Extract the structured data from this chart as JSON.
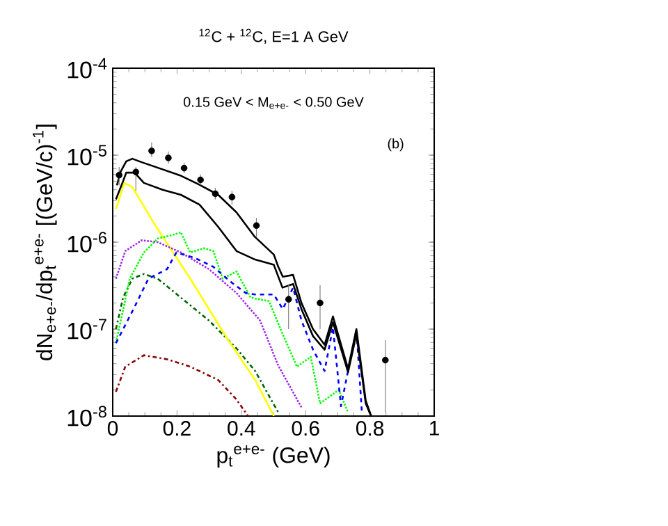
{
  "chart_data": {
    "type": "line",
    "title": "$^{12}$C + $^{12}$C, E=1 A GeV",
    "xlabel": "p$_{t}$$^{e+e-}$ (GeV)",
    "ylabel": "dN$_{e+e-}$/dp$_{t}$$^{e+e-}$ [(GeV/c)$^{-1}$]",
    "annotations": [
      "0.15 GeV <  M$_{e+e-}$ < 0.50 GeV",
      "(b)"
    ],
    "log": "y",
    "grid": false,
    "xlim": [
      0,
      1
    ],
    "ylim": [
      1e-08,
      0.0001
    ],
    "xticks": [
      0,
      0.2,
      0.4,
      0.6,
      0.8,
      1
    ],
    "yticks": [
      {
        "value": 1e-08,
        "label": "10$^{-8}$"
      },
      {
        "value": 1e-07,
        "label": "10$^{-7}$"
      },
      {
        "value": 1e-06,
        "label": "10$^{-6}$"
      },
      {
        "value": 1e-05,
        "label": "10$^{-5}$"
      },
      {
        "value": 0.0001,
        "label": "10$^{-4}$"
      }
    ],
    "series": [
      {
        "type": "line",
        "color": "#8b0000",
        "line_style": "dashdot",
        "marker": "none",
        "x": [
          0.01,
          0.039,
          0.097,
          0.169,
          0.241,
          0.328,
          0.385,
          0.421
        ],
        "values": [
          1.9e-08,
          3.7e-08,
          5e-08,
          4.5e-08,
          3.7e-08,
          2.6e-08,
          1.55e-08,
          1e-08
        ]
      },
      {
        "type": "line",
        "color": "#006400",
        "line_style": "dashdot",
        "marker": "none",
        "x": [
          0.01,
          0.032,
          0.061,
          0.097,
          0.14,
          0.212,
          0.299,
          0.385,
          0.443,
          0.515
        ],
        "values": [
          1e-07,
          2.3e-07,
          3.8e-07,
          4.3e-07,
          3.8e-07,
          2.3e-07,
          1.26e-07,
          6e-08,
          3.3e-08,
          1.1e-08
        ]
      },
      {
        "type": "line",
        "color": "#ffff00",
        "line_style": "solid",
        "marker": "none",
        "x": [
          0.01,
          0.036,
          0.061,
          0.126,
          0.241,
          0.356,
          0.443,
          0.501
        ],
        "values": [
          2.4e-06,
          4.8e-06,
          4.3e-06,
          1.7e-06,
          3.8e-07,
          7.8e-08,
          2.6e-08,
          1e-08
        ]
      },
      {
        "type": "line",
        "color": "#a020f0",
        "line_style": "dotted",
        "marker": "none",
        "x": [
          0.01,
          0.039,
          0.09,
          0.14,
          0.212,
          0.299,
          0.385,
          0.458,
          0.515,
          0.587
        ],
        "values": [
          3.8e-07,
          7.9e-07,
          1.05e-06,
          1e-06,
          7.6e-07,
          4.9e-07,
          2.6e-07,
          1.26e-07,
          3.8e-08,
          1.26e-08
        ]
      },
      {
        "type": "line",
        "color": "#00ff00",
        "line_style": "dotted",
        "marker": "none",
        "x": [
          0.01,
          0.053,
          0.097,
          0.14,
          0.183,
          0.212,
          0.241,
          0.284,
          0.313,
          0.342,
          0.385,
          0.429,
          0.486,
          0.529,
          0.573,
          0.616,
          0.645,
          0.703,
          0.732
        ],
        "values": [
          6.9e-08,
          3.8e-07,
          7.6e-07,
          1.1e-06,
          1.2e-06,
          1.3e-06,
          7.6e-07,
          8.5e-07,
          7.9e-07,
          3.8e-07,
          4.6e-07,
          2.3e-07,
          2.1e-07,
          8.7e-08,
          3.7e-08,
          4.8e-08,
          1.4e-08,
          2e-08,
          1.1e-08
        ]
      },
      {
        "type": "line",
        "color": "#0000ff",
        "line_style": "dashed",
        "marker": "none",
        "x": [
          0.01,
          0.068,
          0.111,
          0.169,
          0.198,
          0.255,
          0.313,
          0.371,
          0.414,
          0.443,
          0.501,
          0.529,
          0.561,
          0.587,
          0.623,
          0.659,
          0.685,
          0.71,
          0.758,
          0.775
        ],
        "values": [
          6.9e-08,
          1.8e-07,
          3.8e-07,
          4.9e-07,
          7.6e-07,
          6.6e-07,
          5.2e-07,
          3.4e-07,
          2.6e-07,
          2.5e-07,
          2.5e-07,
          1.7e-07,
          3e-07,
          1.26e-07,
          5.8e-08,
          3.3e-08,
          1.05e-07,
          1.3e-08,
          1e-07,
          1.1e-08
        ]
      },
      {
        "type": "line",
        "color": "#000000",
        "line_style": "solid",
        "marker": "none",
        "x": [
          0.01,
          0.032,
          0.042,
          0.068,
          0.097,
          0.155,
          0.212,
          0.27,
          0.328,
          0.385,
          0.443,
          0.501,
          0.528,
          0.561,
          0.587,
          0.623,
          0.659,
          0.685,
          0.732,
          0.758,
          0.787,
          0.801
        ],
        "values": [
          3.1e-06,
          5e-06,
          6.3e-06,
          6.3e-06,
          4.8e-06,
          4e-06,
          3.5e-06,
          2.7e-06,
          1.5e-06,
          7.9e-07,
          6.3e-07,
          5.5e-07,
          3e-07,
          3.3e-07,
          1.7e-07,
          8.3e-08,
          5.8e-08,
          1.2e-07,
          3.2e-08,
          8.7e-08,
          1.4e-08,
          1.05e-08
        ]
      },
      {
        "type": "line",
        "color": "#000000",
        "line_style": "solid",
        "marker": "none",
        "x": [
          0.013,
          0.025,
          0.042,
          0.061,
          0.09,
          0.212,
          0.268,
          0.328,
          0.385,
          0.442,
          0.501,
          0.515,
          0.529,
          0.561,
          0.587,
          0.623,
          0.659,
          0.685,
          0.732,
          0.758,
          0.787,
          0.804
        ],
        "values": [
          4.5e-06,
          6.5e-06,
          8.5e-06,
          9.1e-06,
          8.3e-06,
          5.8e-06,
          4.6e-06,
          3.5e-06,
          2.2e-06,
          1.15e-06,
          7.2e-07,
          5.2e-07,
          4e-07,
          4.2e-07,
          2e-07,
          1e-07,
          6.6e-08,
          1.4e-07,
          3.5e-08,
          1e-07,
          1.5e-08,
          1e-08
        ]
      },
      {
        "type": "scatter",
        "color": "#000000",
        "marker": "circle",
        "x": [
          0.02,
          0.072,
          0.121,
          0.173,
          0.222,
          0.273,
          0.319,
          0.371,
          0.447,
          0.547,
          0.645,
          0.848
        ],
        "values": [
          5.9e-06,
          6.4e-06,
          1.12e-05,
          9.3e-06,
          7.1e-06,
          5.2e-06,
          3.6e-06,
          3.3e-06,
          1.55e-06,
          2.2e-07,
          2e-07,
          4.4e-08
        ],
        "errors": [
          [
            4.5e-06,
            7.3e-06
          ],
          [
            3.9e-06,
            7.3e-06
          ],
          [
            9.5e-06,
            1.4e-05
          ],
          [
            8e-06,
            1.1e-05
          ],
          [
            6.2e-06,
            8.2e-06
          ],
          [
            4.5e-06,
            6e-06
          ],
          [
            3.1e-06,
            4.2e-06
          ],
          [
            2.7e-06,
            3.9e-06
          ],
          [
            1.15e-06,
            1.9e-06
          ],
          [
            1e-07,
            3.2e-07
          ],
          [
            1e-07,
            3.2e-07
          ],
          [
            1.1e-08,
            7.5e-08
          ]
        ]
      }
    ]
  }
}
